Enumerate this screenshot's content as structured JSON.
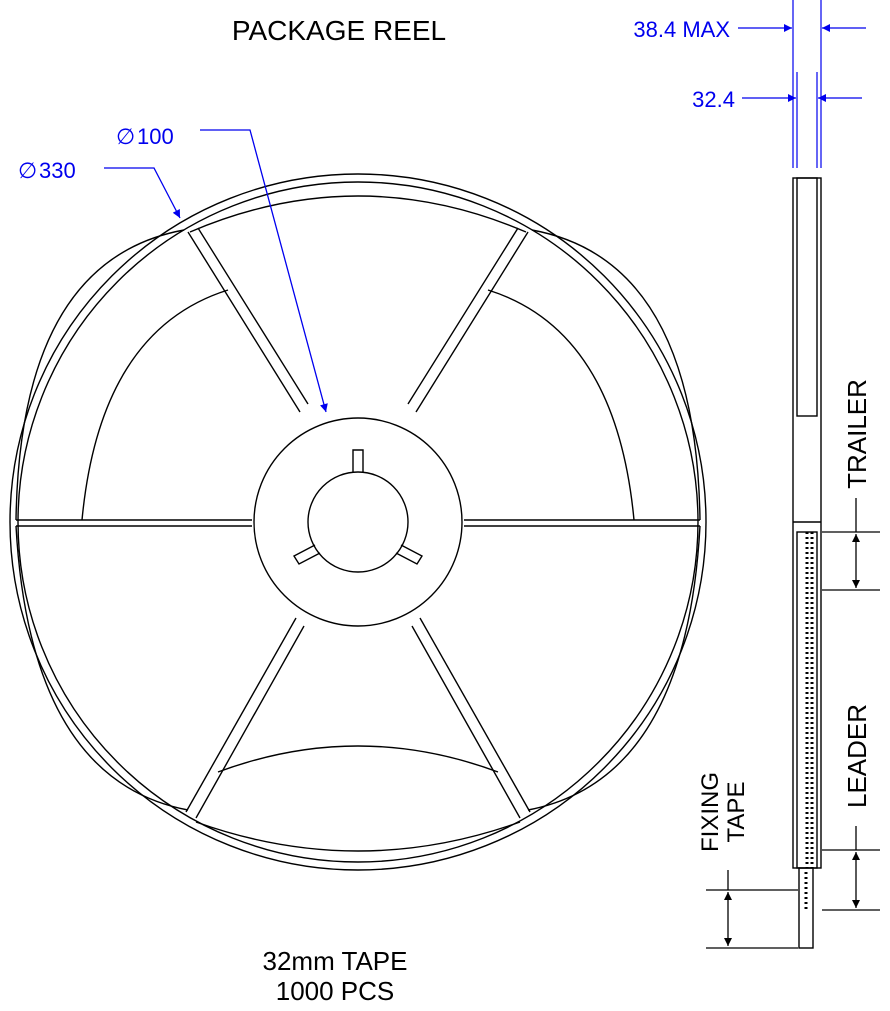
{
  "title": "PACKAGE REEL",
  "dimensions": {
    "reel_outer_diameter": "330",
    "hub_diameter": "100",
    "width_max": "38.4 MAX",
    "width_inner": "32.4"
  },
  "side_labels": {
    "trailer": "TRAILER",
    "leader": "LEADER",
    "fixing_tape_line1": "FIXING",
    "fixing_tape_line2": "TAPE"
  },
  "footer": {
    "tape": "32mm TAPE",
    "quantity": "1000 PCS"
  },
  "symbols": {
    "diameter": "∅"
  },
  "colors": {
    "dimension": "#0000ee",
    "outline": "#000000"
  }
}
